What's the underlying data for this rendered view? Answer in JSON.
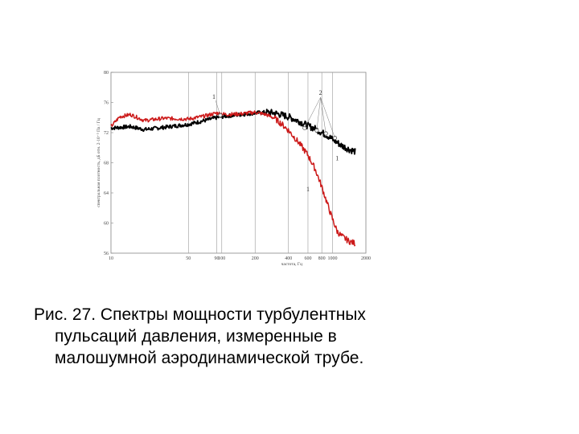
{
  "caption": {
    "line1": "Рис. 27. Спектры мощности турбулентных",
    "line2": "пульсаций давления, измеренные в",
    "line3": "малошумной аэродинамической трубе."
  },
  "chart_data": {
    "type": "line",
    "xlabel": "частота, Гц",
    "ylabel": "спектральная плотность, дБ отн. 2·10⁻⁵ Па / Гц",
    "xscale": "log",
    "xlim": [
      10,
      2000
    ],
    "ylim": [
      56,
      80
    ],
    "x_ticks": [
      10,
      50,
      90,
      100,
      200,
      400,
      600,
      800,
      1000,
      2000
    ],
    "x_tick_labels": [
      "10",
      "50",
      "90",
      "100",
      "200",
      "400",
      "600",
      "800",
      "1000",
      "2000"
    ],
    "y_ticks": [
      56,
      60,
      64,
      68,
      72,
      76,
      80
    ],
    "y_tick_labels": [
      "56",
      "60",
      "64",
      "68",
      "72",
      "76",
      "80"
    ],
    "grid": "vertical",
    "series": [
      {
        "color": "#cc1a1a",
        "x": [
          10,
          12,
          15,
          20,
          30,
          50,
          70,
          90,
          110,
          150,
          200,
          250,
          300,
          350,
          400,
          500,
          600,
          700,
          800,
          900,
          1000,
          1100,
          1200,
          1400,
          1600
        ],
        "y": [
          72.8,
          74.1,
          74.4,
          73.6,
          73.9,
          73.8,
          74.2,
          74.6,
          74.4,
          74.5,
          74.7,
          74.4,
          73.9,
          73.1,
          72.3,
          70.6,
          69.0,
          67.1,
          64.8,
          62.5,
          60.5,
          58.9,
          58.3,
          57.6,
          57.3
        ]
      },
      {
        "color": "#000000",
        "x": [
          10,
          15,
          20,
          30,
          50,
          70,
          90,
          110,
          150,
          200,
          250,
          300,
          400,
          500,
          600,
          700,
          800,
          900,
          1000,
          1100,
          1200,
          1400,
          1600
        ],
        "y": [
          72.6,
          72.8,
          72.4,
          72.7,
          73.1,
          73.6,
          74.0,
          74.2,
          74.4,
          74.6,
          74.7,
          74.6,
          74.1,
          73.5,
          72.9,
          72.5,
          72.0,
          71.6,
          71.1,
          70.7,
          70.3,
          69.8,
          69.5
        ]
      }
    ],
    "annotations": [
      {
        "text": "1",
        "x": 85,
        "y": 76.5
      },
      {
        "text": "2",
        "x": 780,
        "y": 77.0
      },
      {
        "text": "1",
        "x": 1100,
        "y": 68.3
      },
      {
        "text": "1",
        "x": 600,
        "y": 64.2
      }
    ],
    "markers": [
      {
        "x": 97,
        "y": 74.3
      },
      {
        "x": 560,
        "y": 72.6
      },
      {
        "x": 720,
        "y": 72.3
      },
      {
        "x": 870,
        "y": 71.9
      },
      {
        "x": 1050,
        "y": 71.3
      }
    ]
  }
}
